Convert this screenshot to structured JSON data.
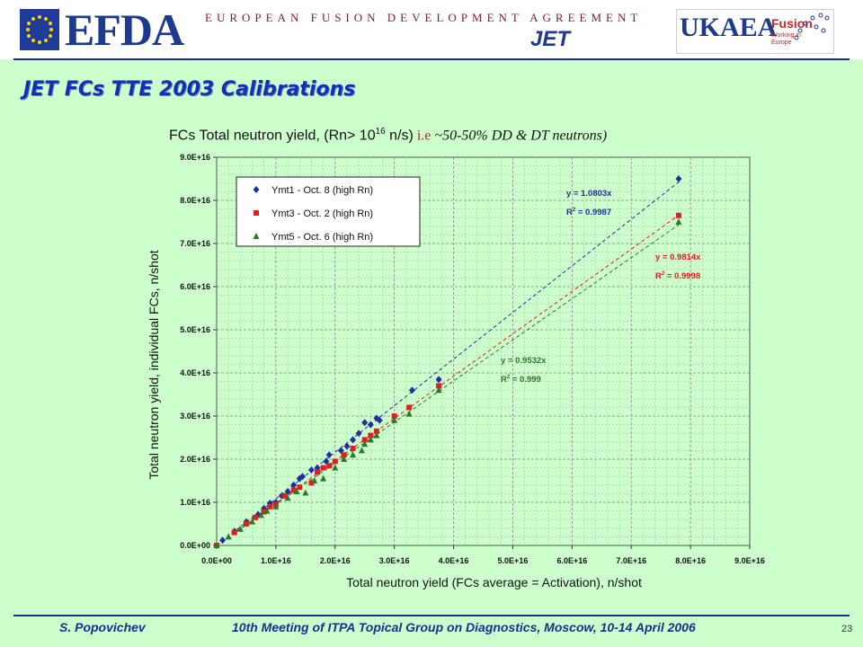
{
  "header": {
    "efda_logo_text": "EFDA",
    "efda_full_name": "EUROPEAN FUSION DEVELOPMENT AGREEMENT",
    "jet_logo_text": "JET",
    "ukaea_logo_text": "UKAEA",
    "fusion_text": "Fusion",
    "fusion_sub": "Working in Europe",
    "band_color": "#ffffff",
    "line_color": "#1a2f8c"
  },
  "slide": {
    "title": "JET FCs TTE 2003 Calibrations",
    "background": "#ccffcc"
  },
  "chart_heading": {
    "main": "FCs Total neutron yield, (Rn> 10",
    "sup": "16",
    "unit": " n/s)",
    "ie": " i.e",
    "detail": "  ~50-50% DD & DT neutrons)"
  },
  "footer": {
    "author": "S. Popovichev",
    "meeting": "10th Meeting of ITPA Topical Group on Diagnostics, Moscow, 10-14 April 2006",
    "page": "23"
  },
  "chart_data": {
    "type": "scatter",
    "xlabel": "Total neutron yield (FCs average = Activation), n/shot",
    "ylabel": "Total neutron yield, individual FCs, n/shot",
    "xlim": [
      0,
      9e+16
    ],
    "ylim": [
      0,
      9e+16
    ],
    "x_ticks": [
      "0.0E+00",
      "1.0E+16",
      "2.0E+16",
      "3.0E+16",
      "4.0E+16",
      "5.0E+16",
      "6.0E+16",
      "7.0E+16",
      "8.0E+16",
      "9.0E+16"
    ],
    "y_ticks": [
      "0.0E+00",
      "1.0E+16",
      "2.0E+16",
      "3.0E+16",
      "4.0E+16",
      "5.0E+16",
      "6.0E+16",
      "7.0E+16",
      "8.0E+16",
      "9.0E+16"
    ],
    "grid": true,
    "legend_position": "top-left",
    "series": [
      {
        "name": "Ymt1 - Oct. 8 (high Rn)",
        "color": "#1f2f9f",
        "marker": "diamond",
        "fit_slope": 1.0803,
        "fit_label": "y = 1.0803x",
        "r2_label": "R",
        "r2_value": " = 0.9987",
        "points": [
          [
            0.1,
            0.12
          ],
          [
            0.3,
            0.33
          ],
          [
            0.5,
            0.55
          ],
          [
            0.7,
            0.72
          ],
          [
            0.8,
            0.86
          ],
          [
            0.9,
            0.98
          ],
          [
            1.0,
            1.0
          ],
          [
            1.1,
            1.15
          ],
          [
            1.2,
            1.25
          ],
          [
            1.3,
            1.4
          ],
          [
            1.4,
            1.55
          ],
          [
            1.45,
            1.6
          ],
          [
            1.6,
            1.75
          ],
          [
            1.7,
            1.8
          ],
          [
            1.85,
            1.95
          ],
          [
            1.9,
            2.1
          ],
          [
            2.1,
            2.2
          ],
          [
            2.2,
            2.3
          ],
          [
            2.3,
            2.45
          ],
          [
            2.4,
            2.6
          ],
          [
            2.5,
            2.85
          ],
          [
            2.6,
            2.8
          ],
          [
            2.7,
            2.95
          ],
          [
            2.75,
            2.9
          ],
          [
            3.3,
            3.6
          ],
          [
            3.75,
            3.85
          ],
          [
            7.8,
            8.5
          ]
        ]
      },
      {
        "name": "Ymt3 - Oct. 2 (high Rn)",
        "color": "#e02020",
        "marker": "square",
        "fit_slope": 0.9814,
        "fit_label": "y = 0.9814x",
        "r2_label": "R",
        "r2_value": " = 0.9998",
        "points": [
          [
            0.0,
            0.0
          ],
          [
            0.3,
            0.3
          ],
          [
            0.5,
            0.5
          ],
          [
            0.65,
            0.65
          ],
          [
            0.8,
            0.78
          ],
          [
            0.9,
            0.9
          ],
          [
            1.0,
            0.95
          ],
          [
            1.15,
            1.15
          ],
          [
            1.3,
            1.28
          ],
          [
            1.4,
            1.35
          ],
          [
            1.6,
            1.45
          ],
          [
            1.7,
            1.7
          ],
          [
            1.8,
            1.8
          ],
          [
            1.9,
            1.85
          ],
          [
            2.0,
            1.95
          ],
          [
            2.15,
            2.1
          ],
          [
            2.3,
            2.25
          ],
          [
            2.5,
            2.45
          ],
          [
            2.6,
            2.55
          ],
          [
            2.7,
            2.65
          ],
          [
            3.0,
            3.0
          ],
          [
            3.25,
            3.2
          ],
          [
            3.75,
            3.7
          ],
          [
            7.8,
            7.65
          ]
        ]
      },
      {
        "name": "Ymt5 - Oct. 6 (high Rn)",
        "color": "#2a7a2a",
        "marker": "triangle",
        "fit_slope": 0.9532,
        "fit_label": "y = 0.9532x",
        "r2_label": "R",
        "r2_value": " = 0.999",
        "points": [
          [
            0.0,
            0.0
          ],
          [
            0.2,
            0.2
          ],
          [
            0.4,
            0.38
          ],
          [
            0.6,
            0.55
          ],
          [
            0.75,
            0.7
          ],
          [
            0.85,
            0.8
          ],
          [
            1.0,
            0.9
          ],
          [
            1.2,
            1.1
          ],
          [
            1.35,
            1.25
          ],
          [
            1.5,
            1.22
          ],
          [
            1.65,
            1.5
          ],
          [
            1.8,
            1.55
          ],
          [
            2.0,
            1.8
          ],
          [
            2.15,
            2.0
          ],
          [
            2.3,
            2.1
          ],
          [
            2.45,
            2.2
          ],
          [
            2.5,
            2.35
          ],
          [
            2.6,
            2.45
          ],
          [
            2.7,
            2.55
          ],
          [
            3.0,
            2.9
          ],
          [
            3.25,
            3.05
          ],
          [
            3.75,
            3.6
          ],
          [
            7.8,
            7.5
          ]
        ]
      }
    ]
  }
}
